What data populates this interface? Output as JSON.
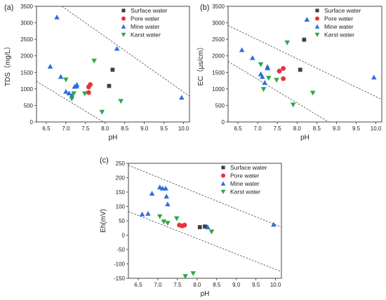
{
  "symbols": {
    "square": "■",
    "circle": "●",
    "triangle_up": "▲",
    "triangle_down": "▼"
  },
  "chart_data": [
    {
      "panel": "(a)",
      "type": "scatter",
      "xlabel": "pH",
      "ylabel": "TDS（mg/L）",
      "xlim": [
        6.25,
        10.15
      ],
      "ylim": [
        0,
        3500
      ],
      "xticks": [
        "6.5",
        "7.0",
        "7.5",
        "8.0",
        "8.5",
        "9.0",
        "9.5",
        "10.0"
      ],
      "yticks": [
        "0",
        "500",
        "1000",
        "1500",
        "2000",
        "2500",
        "3000",
        "3500"
      ],
      "legend_position": "top-right",
      "series": [
        {
          "name": "Surface water",
          "color": "#404040",
          "marker": "square",
          "x": [
            8.19,
            8.1
          ],
          "y": [
            1580,
            1090
          ]
        },
        {
          "name": "Pore water",
          "color": "#e8333a",
          "marker": "circle",
          "x": [
            7.58,
            7.62,
            7.58
          ],
          "y": [
            1060,
            1130,
            890
          ]
        },
        {
          "name": "Mine water",
          "color": "#2d6fd8",
          "marker": "triangle_up",
          "x": [
            6.77,
            6.6,
            6.87,
            7.0,
            7.08,
            7.15,
            7.22,
            7.27,
            7.28,
            8.3,
            9.95
          ],
          "y": [
            3170,
            1680,
            1370,
            920,
            870,
            800,
            1070,
            1080,
            1130,
            2220,
            740
          ]
        },
        {
          "name": "Karst water",
          "color": "#2aa84a",
          "marker": "triangle_down",
          "x": [
            7.0,
            7.15,
            7.2,
            7.48,
            7.72,
            7.92,
            8.4
          ],
          "y": [
            1280,
            700,
            860,
            860,
            1850,
            300,
            630
          ]
        }
      ],
      "lines": [
        {
          "x": [
            6.9,
            10.15
          ],
          "y": [
            3500,
            780
          ]
        },
        {
          "x": [
            6.25,
            7.95
          ],
          "y": [
            1230,
            0
          ]
        }
      ]
    },
    {
      "panel": "(b)",
      "type": "scatter",
      "xlabel": "pH",
      "ylabel": "EC（μs/cm）",
      "xlim": [
        6.25,
        10.15
      ],
      "ylim": [
        0,
        3500
      ],
      "xticks": [
        "6.5",
        "7.0",
        "7.5",
        "8.0",
        "8.5",
        "9.0",
        "9.5",
        "10.0"
      ],
      "yticks": [
        "0",
        "500",
        "1000",
        "1500",
        "2000",
        "2500",
        "3000",
        "3500"
      ],
      "legend_position": "top-right",
      "series": [
        {
          "name": "Surface water",
          "color": "#404040",
          "marker": "square",
          "x": [
            8.18,
            8.08
          ],
          "y": [
            2490,
            1580
          ]
        },
        {
          "name": "Pore water",
          "color": "#e8333a",
          "marker": "circle",
          "x": [
            7.55,
            7.65,
            7.65
          ],
          "y": [
            1540,
            1620,
            1310
          ]
        },
        {
          "name": "Mine water",
          "color": "#2d6fd8",
          "marker": "triangle_up",
          "x": [
            6.6,
            6.87,
            7.08,
            7.18,
            7.12,
            7.25,
            7.25,
            8.25,
            9.95
          ],
          "y": [
            2180,
            1940,
            1450,
            1190,
            1370,
            1630,
            1670,
            3100,
            1350
          ]
        },
        {
          "name": "Karst water",
          "color": "#2aa84a",
          "marker": "triangle_down",
          "x": [
            7.08,
            7.15,
            7.28,
            7.48,
            7.75,
            7.9,
            8.4
          ],
          "y": [
            1740,
            990,
            1330,
            1270,
            2400,
            520,
            880
          ]
        }
      ],
      "lines": [
        {
          "x": [
            6.25,
            10.15
          ],
          "y": [
            2920,
            680
          ]
        },
        {
          "x": [
            6.25,
            8.8
          ],
          "y": [
            1830,
            0
          ]
        }
      ]
    },
    {
      "panel": "(c)",
      "type": "scatter",
      "xlabel": "pH",
      "ylabel": "Eh(mV)",
      "xlim": [
        6.25,
        10.15
      ],
      "ylim": [
        -150,
        250
      ],
      "xticks": [
        "6.5",
        "7.0",
        "7.5",
        "8.0",
        "8.5",
        "9.0",
        "9.5",
        "10.0"
      ],
      "yticks": [
        "-150",
        "-100",
        "-50",
        "0",
        "50",
        "100",
        "150",
        "200",
        "250"
      ],
      "legend_position": "top-right",
      "series": [
        {
          "name": "Surface water",
          "color": "#404040",
          "marker": "square",
          "x": [
            8.07,
            8.2
          ],
          "y": [
            28,
            30
          ]
        },
        {
          "name": "Pore water",
          "color": "#e8333a",
          "marker": "circle",
          "x": [
            7.55,
            7.62,
            7.68
          ],
          "y": [
            35,
            32,
            35
          ]
        },
        {
          "name": "Mine water",
          "color": "#2d6fd8",
          "marker": "triangle_up",
          "x": [
            6.6,
            6.75,
            6.85,
            7.05,
            7.12,
            7.2,
            7.22,
            7.25,
            8.27,
            9.95
          ],
          "y": [
            73,
            75,
            145,
            167,
            163,
            163,
            135,
            108,
            28,
            37
          ]
        },
        {
          "name": "Karst water",
          "color": "#2aa84a",
          "marker": "triangle_down",
          "x": [
            7.05,
            7.15,
            7.25,
            7.48,
            7.7,
            7.9,
            8.37
          ],
          "y": [
            65,
            47,
            42,
            58,
            -143,
            -133,
            12
          ]
        }
      ],
      "lines": [
        {
          "x": [
            6.25,
            10.15
          ],
          "y": [
            243,
            28
          ]
        },
        {
          "x": [
            6.25,
            10.15
          ],
          "y": [
            82,
            -127
          ]
        }
      ]
    }
  ]
}
